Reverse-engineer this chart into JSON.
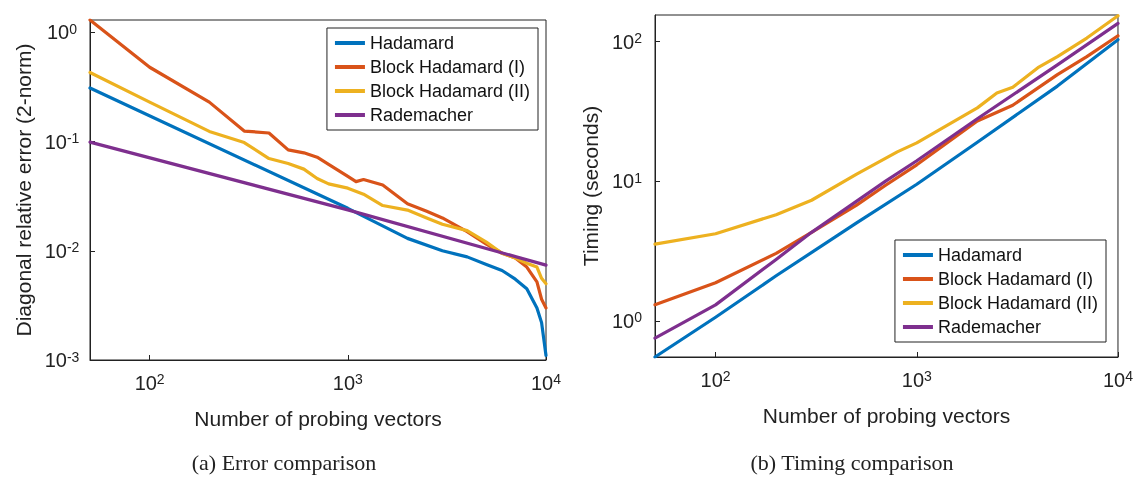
{
  "chart_data": [
    {
      "type": "line",
      "title": "(a) Error comparison",
      "xlabel": "Number of probing vectors",
      "ylabel": "Diagonal relative error (2-norm)",
      "log": "xy",
      "xlim": [
        50,
        10000
      ],
      "ylim": [
        0.001,
        1.3
      ],
      "xticks": [
        {
          "value": 100,
          "label": "10$^{2}$"
        },
        {
          "value": 1000,
          "label": "10$^{3}$"
        },
        {
          "value": 10000,
          "label": "10$^{4}$"
        }
      ],
      "yticks": [
        {
          "value": 0.001,
          "label": "10$^{-3}$"
        },
        {
          "value": 0.01,
          "label": "10$^{-2}$"
        },
        {
          "value": 0.1,
          "label": "10$^{-1}$"
        },
        {
          "value": 1,
          "label": "10$^{0}$"
        }
      ],
      "grid": false,
      "legend": "top right",
      "line_style": "solid",
      "marker": "none",
      "series": [
        {
          "name": "Hadamard",
          "color": "#0072bd",
          "x": [
            50,
            1000,
            2000,
            3000,
            4000,
            5000,
            6000,
            7000,
            8000,
            9000,
            9500,
            10000
          ],
          "values": [
            0.31,
            0.0245,
            0.013,
            0.01,
            0.0088,
            0.0075,
            0.0066,
            0.0055,
            0.0045,
            0.003,
            0.0022,
            0.0011
          ]
        },
        {
          "name": "Block Hadamard (I)",
          "color": "#d95319",
          "x": [
            50,
            100,
            200,
            300,
            400,
            500,
            600,
            700,
            800,
            1000,
            1100,
            1200,
            1500,
            2000,
            2500,
            3000,
            4000,
            5000,
            6000,
            7000,
            8000,
            9000,
            9500,
            10000
          ],
          "values": [
            1.3,
            0.48,
            0.23,
            0.125,
            0.12,
            0.084,
            0.079,
            0.072,
            0.062,
            0.048,
            0.043,
            0.045,
            0.04,
            0.027,
            0.023,
            0.02,
            0.015,
            0.0115,
            0.0095,
            0.0086,
            0.0071,
            0.0052,
            0.0036,
            0.003
          ]
        },
        {
          "name": "Block Hadamard (II)",
          "color": "#edb120",
          "x": [
            50,
            100,
            200,
            300,
            400,
            500,
            600,
            700,
            800,
            1000,
            1200,
            1500,
            2000,
            2500,
            3000,
            4000,
            5000,
            6000,
            7000,
            8000,
            9000,
            9500,
            10000
          ],
          "values": [
            0.43,
            0.23,
            0.124,
            0.098,
            0.07,
            0.063,
            0.056,
            0.046,
            0.041,
            0.0375,
            0.033,
            0.026,
            0.0236,
            0.02,
            0.0175,
            0.0153,
            0.012,
            0.0095,
            0.0086,
            0.0077,
            0.0071,
            0.0056,
            0.005
          ]
        },
        {
          "name": "Rademacher",
          "color": "#7e2f8e",
          "x": [
            50,
            1000,
            10000
          ],
          "values": [
            0.099,
            0.0237,
            0.0074
          ]
        }
      ]
    },
    {
      "type": "line",
      "title": "(b) Timing comparison",
      "xlabel": "Number of probing vectors",
      "ylabel": "Timing (seconds)",
      "log": "xy",
      "xlim": [
        50,
        10000
      ],
      "ylim": [
        0.55,
        155
      ],
      "xticks": [
        {
          "value": 100,
          "label": "10$^{2}$"
        },
        {
          "value": 1000,
          "label": "10$^{3}$"
        },
        {
          "value": 10000,
          "label": "10$^{4}$"
        }
      ],
      "yticks": [
        {
          "value": 1,
          "label": "10$^{0}$"
        },
        {
          "value": 10,
          "label": "10$^{1}$"
        },
        {
          "value": 100,
          "label": "10$^{2}$"
        }
      ],
      "grid": false,
      "legend": "bottom right",
      "line_style": "solid",
      "marker": "none",
      "series": [
        {
          "name": "Hadamard",
          "color": "#0072bd",
          "x": [
            50,
            100,
            200,
            500,
            1000,
            2000,
            5000,
            10000
          ],
          "values": [
            0.55,
            1.06,
            2.1,
            5,
            9.5,
            19,
            48,
            103
          ]
        },
        {
          "name": "Block Hadamard (I)",
          "color": "#d95319",
          "x": [
            50,
            100,
            200,
            300,
            500,
            700,
            1000,
            2000,
            3000,
            5000,
            7000,
            10000
          ],
          "values": [
            1.3,
            1.87,
            3.04,
            4.3,
            6.7,
            9.35,
            13.1,
            27,
            35,
            58,
            78,
            110
          ]
        },
        {
          "name": "Block Hadamard (II)",
          "color": "#edb120",
          "x": [
            50,
            100,
            200,
            300,
            500,
            800,
            1000,
            2000,
            2500,
            3000,
            4000,
            5000,
            7000,
            10000
          ],
          "values": [
            3.54,
            4.2,
            5.75,
            7.3,
            11.2,
            16.2,
            18.8,
            33.5,
            42.8,
            47,
            65,
            78,
            106,
            153
          ]
        },
        {
          "name": "Rademacher",
          "color": "#7e2f8e",
          "x": [
            50,
            100,
            200,
            300,
            700,
            1000,
            2000,
            5000,
            10000
          ],
          "values": [
            0.75,
            1.3,
            2.75,
            4.3,
            10,
            14,
            28,
            68,
            135
          ]
        }
      ]
    }
  ]
}
